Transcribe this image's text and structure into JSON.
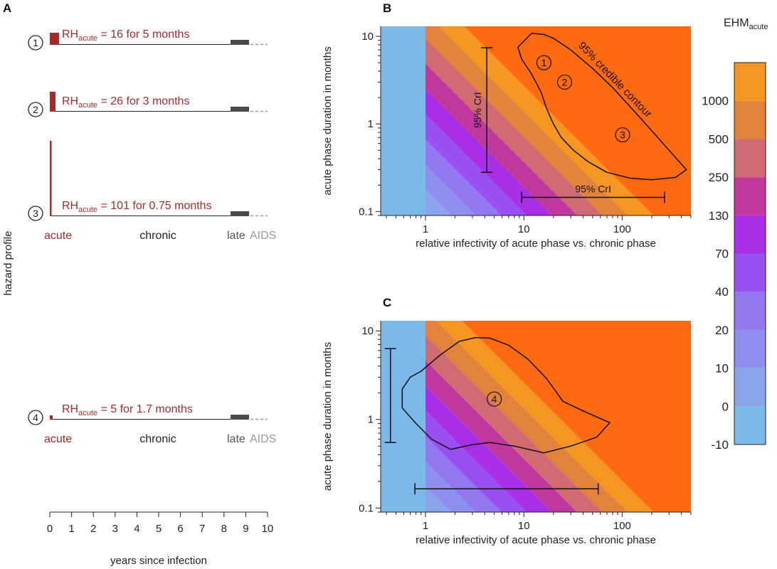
{
  "colors": {
    "acute_red": "#a52a2a",
    "late_grey": "#4a4a4a",
    "aids_grey": "#9a9a9a",
    "palette": [
      "#7ab9e8",
      "#88a5ec",
      "#8d90ee",
      "#9277f0",
      "#9a4ff2",
      "#a92ee8",
      "#c0389e",
      "#d06a73",
      "#e38339",
      "#f69520",
      "#ff6a10"
    ]
  },
  "panel_a": {
    "label": "A",
    "ylabel": "hazard profile",
    "xlabel": "years since infection",
    "xticks": [
      "0",
      "1",
      "2",
      "3",
      "4",
      "5",
      "6",
      "7",
      "8",
      "9",
      "10"
    ],
    "phase_labels": {
      "acute": "acute",
      "chronic": "chronic",
      "late": "late",
      "aids": "AIDS"
    },
    "profiles": [
      {
        "id": "1",
        "rh_label": "RH",
        "rh_sub": "acute",
        "rh_text": " = 16 for 5 months",
        "rh": 16,
        "months": 5
      },
      {
        "id": "2",
        "rh_label": "RH",
        "rh_sub": "acute",
        "rh_text": " = 26 for 3 months",
        "rh": 26,
        "months": 3
      },
      {
        "id": "3",
        "rh_label": "RH",
        "rh_sub": "acute",
        "rh_text": " = 101 for 0.75 months",
        "rh": 101,
        "months": 0.75
      },
      {
        "id": "4",
        "rh_label": "RH",
        "rh_sub": "acute",
        "rh_text": " = 5 for 1.7 months",
        "rh": 5,
        "months": 1.7
      }
    ]
  },
  "chart_data": [
    {
      "type": "heatmap",
      "panel": "B",
      "xlabel": "relative infectivity of acute phase vs. chronic phase",
      "ylabel": "acute phase duration in months",
      "xscale": "log",
      "yscale": "log",
      "xlim": [
        0.35,
        500
      ],
      "ylim": [
        0.09,
        13
      ],
      "xticks": [
        {
          "v": 1,
          "label": "1"
        },
        {
          "v": 10,
          "label": "10"
        },
        {
          "v": 100,
          "label": "100"
        }
      ],
      "yticks": [
        {
          "v": 0.1,
          "label": "0.1"
        },
        {
          "v": 1,
          "label": "1"
        },
        {
          "v": 10,
          "label": "10"
        }
      ],
      "contour_label": "95% credible contour",
      "contour": [
        [
          10,
          8.8
        ],
        [
          12,
          10.8
        ],
        [
          16,
          10.5
        ],
        [
          20,
          9.5
        ],
        [
          30,
          7
        ],
        [
          50,
          4.3
        ],
        [
          80,
          2.6
        ],
        [
          150,
          1.2
        ],
        [
          300,
          0.5
        ],
        [
          450,
          0.3
        ],
        [
          350,
          0.245
        ],
        [
          200,
          0.23
        ],
        [
          120,
          0.24
        ],
        [
          70,
          0.28
        ],
        [
          45,
          0.37
        ],
        [
          32,
          0.5
        ],
        [
          24,
          0.7
        ],
        [
          20,
          1.0
        ],
        [
          17,
          1.5
        ],
        [
          15,
          2.3
        ],
        [
          12,
          3.7
        ],
        [
          9.5,
          5.5
        ],
        [
          8.7,
          7.5
        ]
      ],
      "points": [
        {
          "id": "1",
          "x": 16,
          "y": 5
        },
        {
          "id": "2",
          "x": 26,
          "y": 3
        },
        {
          "id": "3",
          "x": 101,
          "y": 0.75
        }
      ],
      "cri_vertical": {
        "x": 4.2,
        "y0": 0.28,
        "y1": 7.4,
        "label": "95% CrI"
      },
      "cri_horizontal": {
        "y": 0.145,
        "x0": 9.5,
        "x1": 270,
        "label": "95% CrI"
      }
    },
    {
      "type": "heatmap",
      "panel": "C",
      "xlabel": "relative infectivity of acute phase vs. chronic phase",
      "ylabel": "acute phase duration in months",
      "xscale": "log",
      "yscale": "log",
      "xlim": [
        0.35,
        500
      ],
      "ylim": [
        0.09,
        13
      ],
      "xticks": [
        {
          "v": 1,
          "label": "1"
        },
        {
          "v": 10,
          "label": "10"
        },
        {
          "v": 100,
          "label": "100"
        }
      ],
      "yticks": [
        {
          "v": 0.1,
          "label": "0.1"
        },
        {
          "v": 1,
          "label": "1"
        },
        {
          "v": 10,
          "label": "10"
        }
      ],
      "contour": [
        [
          0.9,
          3.5
        ],
        [
          1.4,
          5.3
        ],
        [
          2.2,
          7.6
        ],
        [
          3.2,
          8.4
        ],
        [
          4.5,
          8.3
        ],
        [
          7,
          6.9
        ],
        [
          11,
          4.8
        ],
        [
          17,
          2.9
        ],
        [
          25,
          1.6
        ],
        [
          40,
          1.25
        ],
        [
          75,
          0.92
        ],
        [
          55,
          0.63
        ],
        [
          30,
          0.5
        ],
        [
          16,
          0.42
        ],
        [
          8,
          0.5
        ],
        [
          4.5,
          0.55
        ],
        [
          3,
          0.52
        ],
        [
          1.8,
          0.46
        ],
        [
          1.15,
          0.6
        ],
        [
          0.8,
          0.9
        ],
        [
          0.58,
          1.35
        ],
        [
          0.58,
          2.2
        ],
        [
          0.7,
          3.0
        ]
      ],
      "points": [
        {
          "id": "4",
          "x": 5,
          "y": 1.7
        }
      ],
      "cri_vertical": {
        "x": 0.44,
        "y0": 0.55,
        "y1": 6.3
      },
      "cri_horizontal": {
        "y": 0.165,
        "x0": 0.78,
        "x1": 57
      }
    },
    {
      "type": "legend",
      "title": "EHM",
      "title_sub": "acute",
      "levels": [
        "-10",
        "0",
        "10",
        "20",
        "40",
        "70",
        "130",
        "250",
        "500",
        "1000"
      ],
      "colors": [
        "#7ab9e8",
        "#88a5ec",
        "#8d90ee",
        "#9277f0",
        "#9a4ff2",
        "#a92ee8",
        "#c0389e",
        "#d06a73",
        "#e38339",
        "#f69520"
      ]
    }
  ]
}
